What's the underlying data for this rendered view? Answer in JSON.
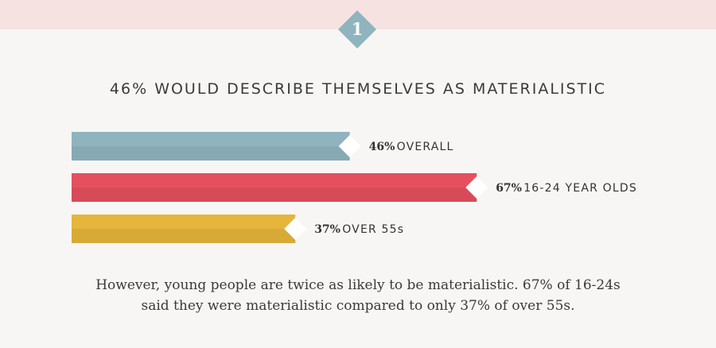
{
  "header": {
    "badge_number": "1"
  },
  "chart_data": {
    "type": "bar",
    "orientation": "horizontal",
    "title": "46% WOULD DESCRIBE THEMSELVES AS MATERIALISTIC",
    "unit": "%",
    "categories": [
      "OVERALL",
      "16-24 YEAR OLDS",
      "OVER 55s"
    ],
    "values": [
      46,
      67,
      37
    ],
    "value_labels": [
      "46%",
      "67%",
      "37%"
    ],
    "colors": [
      "#8fb4bf",
      "#e5505e",
      "#e5b53c"
    ],
    "xlim": [
      0,
      100
    ],
    "grid": false,
    "legend": "none"
  },
  "caption": {
    "line1": "However, young people are twice as likely to be materialistic. 67% of 16-24s",
    "line2": "said they were materialistic compared to only 37% of over 55s."
  }
}
